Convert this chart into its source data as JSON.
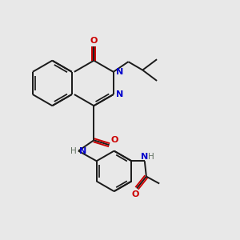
{
  "bg_color": "#e8e8e8",
  "bond_color": "#1a1a1a",
  "nitrogen_color": "#0000cc",
  "oxygen_color": "#cc0000",
  "nh_color": "#607060",
  "lw": 1.4,
  "figsize": [
    3.0,
    3.0
  ],
  "dpi": 100,
  "xlim": [
    0,
    10
  ],
  "ylim": [
    0,
    10
  ]
}
